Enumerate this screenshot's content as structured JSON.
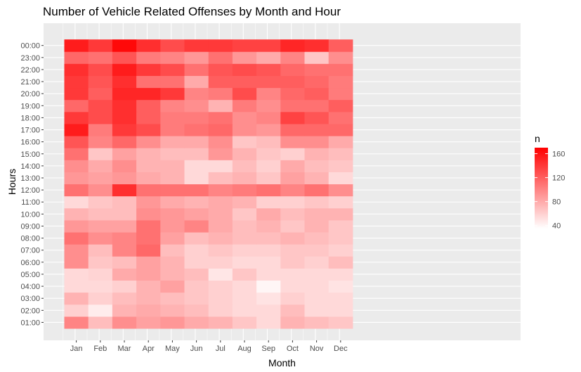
{
  "chart_data": {
    "type": "heatmap",
    "title": "Number of Vehicle Related Offenses by Month and Hour",
    "xlabel": "Month",
    "ylabel": "Hours",
    "x_categories": [
      "Jan",
      "Feb",
      "Mar",
      "Apr",
      "May",
      "Jun",
      "Jul",
      "Aug",
      "Sep",
      "Oct",
      "Nov",
      "Dec"
    ],
    "y_categories": [
      "01:00",
      "02:00",
      "03:00",
      "04:00",
      "05:00",
      "06:00",
      "07:00",
      "08:00",
      "09:00",
      "10:00",
      "11:00",
      "12:00",
      "13:00",
      "14:00",
      "15:00",
      "16:00",
      "17:00",
      "18:00",
      "19:00",
      "20:00",
      "21:00",
      "22:00",
      "23:00",
      "00:00"
    ],
    "values": [
      [
        100,
        70,
        95,
        85,
        90,
        80,
        75,
        65,
        55,
        75,
        70,
        65
      ],
      [
        60,
        45,
        75,
        80,
        75,
        70,
        60,
        55,
        55,
        70,
        55,
        55
      ],
      [
        75,
        60,
        70,
        75,
        70,
        65,
        60,
        55,
        50,
        60,
        55,
        55
      ],
      [
        55,
        55,
        60,
        75,
        85,
        65,
        60,
        55,
        40,
        55,
        55,
        50
      ],
      [
        55,
        58,
        80,
        85,
        75,
        70,
        48,
        65,
        55,
        55,
        55,
        55
      ],
      [
        95,
        65,
        70,
        85,
        75,
        60,
        60,
        55,
        55,
        65,
        60,
        70
      ],
      [
        95,
        70,
        100,
        115,
        70,
        60,
        65,
        60,
        60,
        65,
        65,
        60
      ],
      [
        110,
        95,
        100,
        110,
        85,
        70,
        75,
        70,
        70,
        75,
        70,
        65
      ],
      [
        90,
        85,
        85,
        110,
        90,
        100,
        80,
        70,
        75,
        65,
        75,
        65
      ],
      [
        75,
        70,
        70,
        95,
        90,
        85,
        80,
        65,
        80,
        70,
        75,
        75
      ],
      [
        55,
        65,
        70,
        90,
        80,
        75,
        80,
        75,
        60,
        60,
        65,
        60
      ],
      [
        110,
        95,
        145,
        110,
        110,
        110,
        100,
        105,
        110,
        100,
        110,
        95
      ],
      [
        90,
        85,
        90,
        80,
        75,
        55,
        70,
        75,
        65,
        85,
        75,
        55
      ],
      [
        95,
        80,
        95,
        75,
        75,
        55,
        55,
        70,
        60,
        80,
        70,
        65
      ],
      [
        110,
        65,
        85,
        75,
        70,
        70,
        90,
        75,
        65,
        60,
        75,
        70
      ],
      [
        125,
        100,
        115,
        95,
        80,
        80,
        95,
        65,
        70,
        95,
        95,
        80
      ],
      [
        155,
        105,
        140,
        130,
        105,
        110,
        115,
        95,
        90,
        115,
        115,
        115
      ],
      [
        140,
        130,
        145,
        120,
        105,
        105,
        110,
        95,
        100,
        135,
        125,
        110
      ],
      [
        115,
        130,
        145,
        120,
        100,
        95,
        75,
        105,
        95,
        110,
        110,
        120
      ],
      [
        140,
        120,
        150,
        150,
        140,
        100,
        105,
        130,
        100,
        115,
        120,
        105
      ],
      [
        140,
        125,
        145,
        110,
        110,
        80,
        120,
        120,
        120,
        120,
        115,
        105
      ],
      [
        145,
        130,
        155,
        140,
        130,
        110,
        125,
        130,
        125,
        115,
        110,
        110
      ],
      [
        115,
        110,
        125,
        105,
        100,
        90,
        110,
        90,
        80,
        100,
        65,
        95
      ],
      [
        155,
        140,
        165,
        145,
        130,
        140,
        140,
        135,
        135,
        150,
        145,
        120
      ]
    ],
    "legend": {
      "title": "n",
      "position": "right",
      "ticks": [
        40,
        80,
        120,
        160
      ],
      "min": 35,
      "max": 170,
      "low_color": "#ffffff",
      "high_color": "#ff0000"
    },
    "panel_background": "#ebebeb",
    "grid": true
  }
}
